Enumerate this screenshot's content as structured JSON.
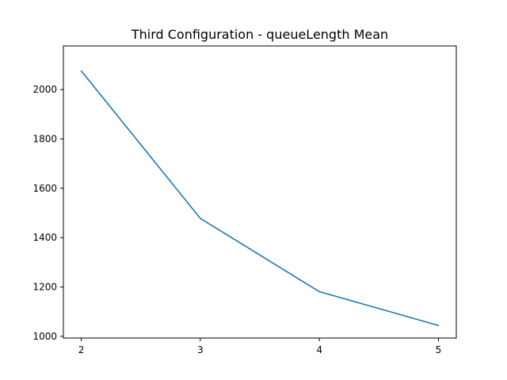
{
  "chart_data": {
    "type": "line",
    "title": "Third Configuration - queueLength Mean",
    "xlabel": "",
    "ylabel": "",
    "x": [
      2,
      3,
      4,
      5
    ],
    "xticks": [
      2,
      3,
      4,
      5
    ],
    "yticks": [
      1000,
      1200,
      1400,
      1600,
      1800,
      2000
    ],
    "xlim": [
      1.85,
      5.15
    ],
    "ylim": [
      993,
      2177
    ],
    "grid": false,
    "series": [
      {
        "values": [
          2076,
          1478,
          1181,
          1044
        ],
        "color": "#1f77b4"
      }
    ]
  }
}
